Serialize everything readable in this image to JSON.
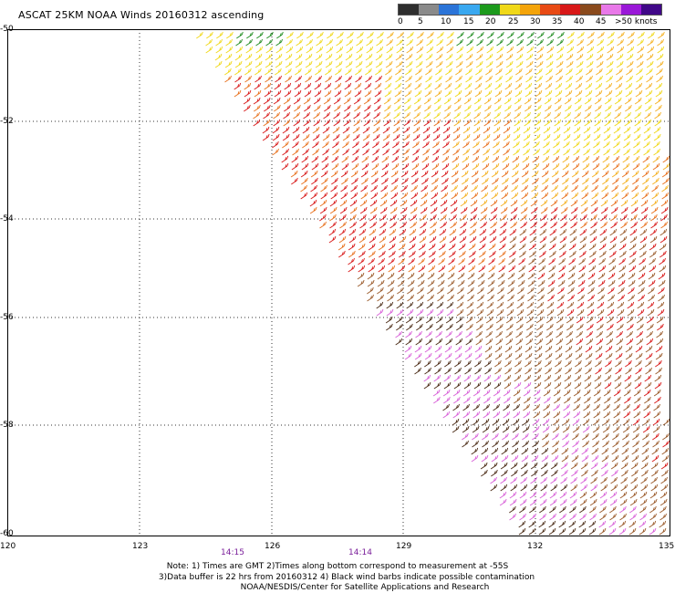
{
  "title": "ASCAT 25KM NOAA Winds 20160312 ascending",
  "legend": {
    "labels": [
      "0",
      "5",
      "10",
      "15",
      "20",
      "25",
      "30",
      "35",
      "40",
      "45",
      ">50 knots"
    ],
    "colors": [
      "#2e2e2e",
      "#8a8a8a",
      "#2b74d8",
      "#39a8f0",
      "#1c9a1c",
      "#f0d818",
      "#f4a40a",
      "#e84a14",
      "#d81818",
      "#8a4a1c",
      "#e878e8",
      "#9a18d8",
      "#400888"
    ]
  },
  "map": {
    "lat_labels": [
      "-50",
      "-52",
      "-54",
      "-56",
      "-58",
      "-60"
    ],
    "lon_labels": [
      "120",
      "123",
      "126",
      "129",
      "132",
      "135"
    ],
    "time_labels": [
      "14:15",
      "14:14"
    ]
  },
  "notes": [
    "Note: 1) Times are GMT 2)Times along bottom correspond to measurement at -55S",
    "3)Data buffer is 22 hrs from 20160312 4) Black wind barbs indicate possible contamination",
    "NOAA/NESDIS/Center for Satellite Applications and Research"
  ]
}
